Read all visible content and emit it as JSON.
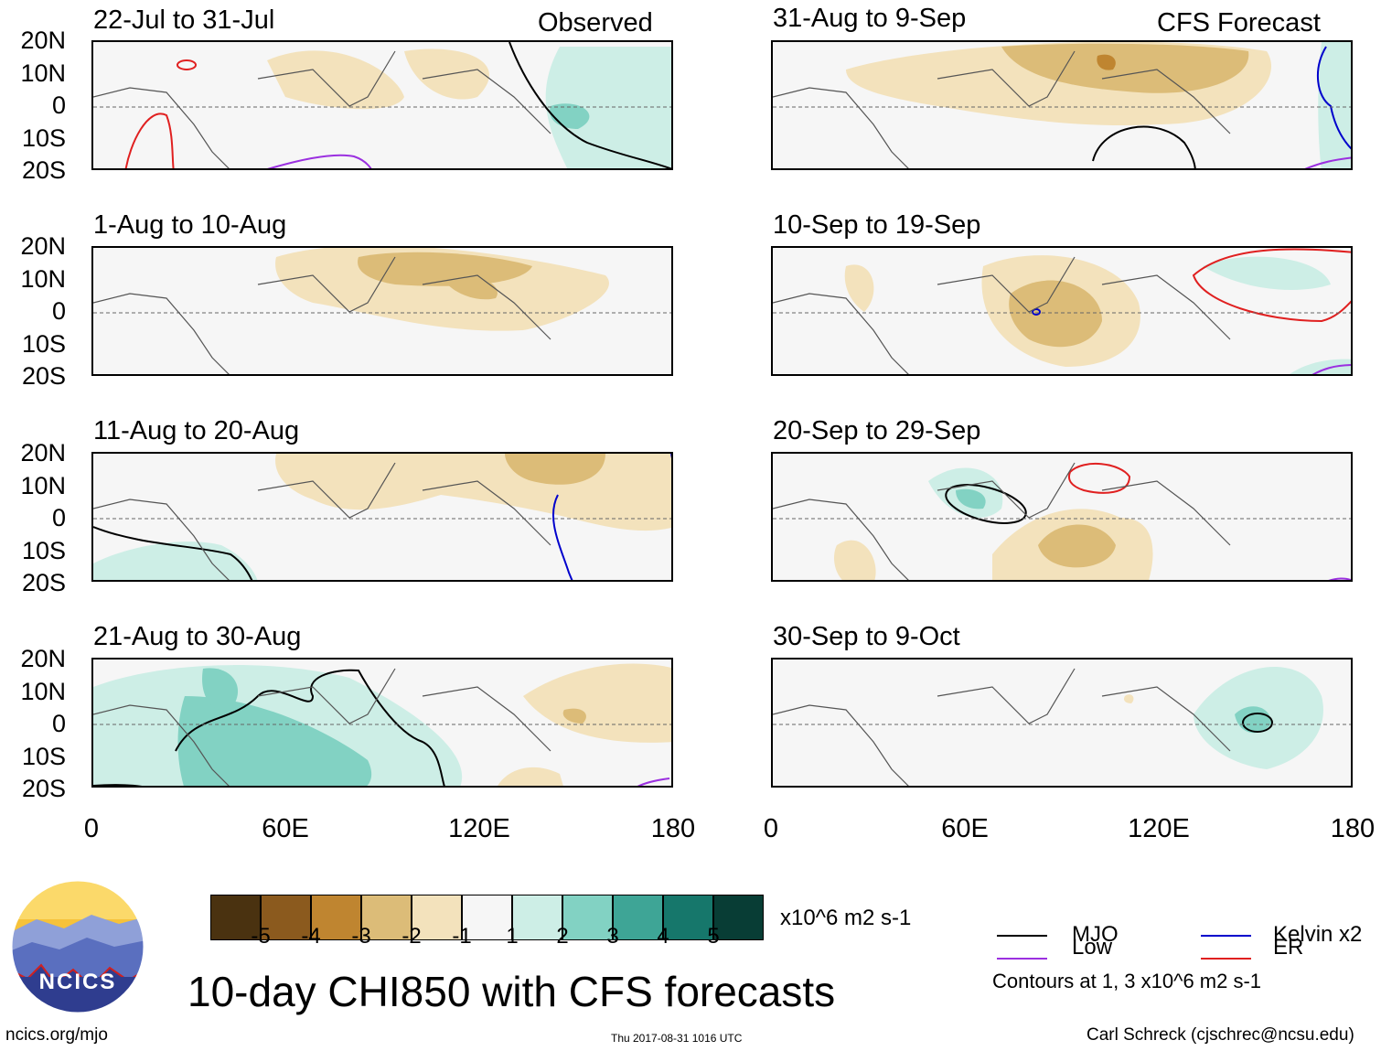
{
  "chart_data": {
    "type": "heatmap",
    "title": "10-day CHI850 with CFS forecasts",
    "variable": "CHI850",
    "units": "x10^6 m2 s-1",
    "x_axis": {
      "ticks": [
        "0",
        "60E",
        "120E",
        "180"
      ],
      "range_deg": [
        0,
        180
      ]
    },
    "y_axis": {
      "ticks": [
        "20N",
        "10N",
        "0",
        "10S",
        "20S"
      ],
      "range_deg": [
        -20,
        20
      ]
    },
    "columns": [
      {
        "label": "Observed",
        "panels": [
          "22-Jul to 31-Jul",
          "1-Aug to 10-Aug",
          "11-Aug to 20-Aug",
          "21-Aug to 30-Aug"
        ]
      },
      {
        "label": "CFS Forecast",
        "panels": [
          "31-Aug to 9-Sep",
          "10-Sep to 19-Sep",
          "20-Sep to 29-Sep",
          "30-Sep to 9-Oct"
        ]
      }
    ],
    "colorbar": {
      "labels": [
        "-5",
        "-4",
        "-3",
        "-2",
        "-1",
        "1",
        "2",
        "3",
        "4",
        "5"
      ],
      "colors": [
        "#4a3210",
        "#8b5a1e",
        "#bf8530",
        "#dcbc78",
        "#f3e2bc",
        "#f6f6f6",
        "#cdeee6",
        "#82d2c3",
        "#3ea596",
        "#16776b",
        "#083d35"
      ]
    },
    "legend": [
      {
        "label": "MJO",
        "color": "#000000"
      },
      {
        "label": "Kelvin x2",
        "color": "#0000cc"
      },
      {
        "label": "Low",
        "color": "#9b30e0"
      },
      {
        "label": "ER",
        "color": "#e02020"
      }
    ],
    "contour_note": "Contours at 1, 3 x10^6 m2 s-1"
  },
  "org": {
    "logo_text": "NCICS",
    "url": "ncics.org/mjo"
  },
  "timestamp": "Thu 2017-08-31 1016 UTC",
  "author": "Carl Schreck (cjschrec@ncsu.edu)"
}
